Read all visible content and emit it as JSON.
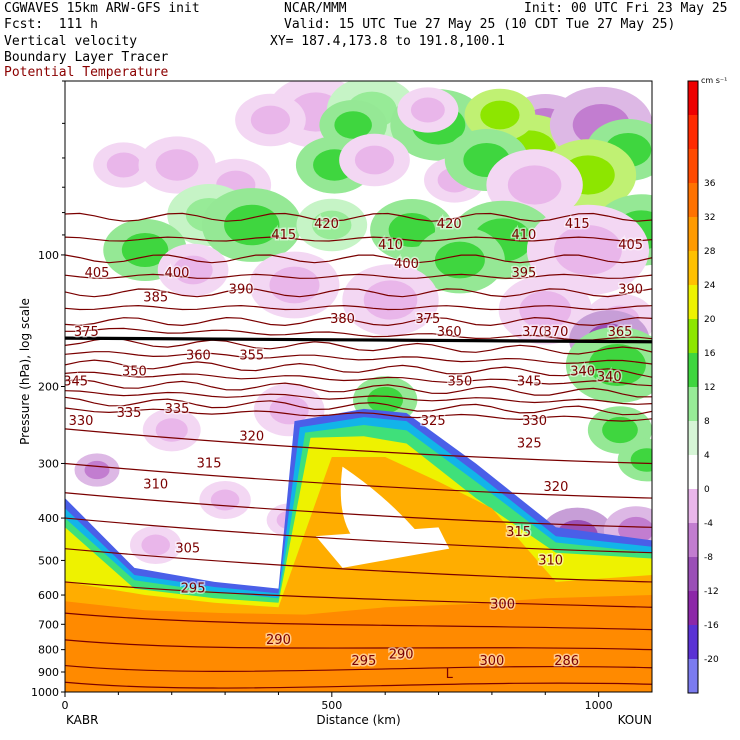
{
  "header": {
    "model": "CGWAVES 15km ARW-GFS init",
    "org": "NCAR/MMM",
    "init": "Init: 00 UTC Fri 23 May 25",
    "fcst": "Fcst:  111 h",
    "valid": "Valid: 15 UTC Tue 27 May 25 (10 CDT Tue 27 May 25)",
    "field1": "Vertical velocity",
    "xy": "XY= 187.4,173.8 to 191.8,100.1",
    "field2": "Boundary Layer Tracer",
    "field3": "Potential Temperature"
  },
  "colorbar": {
    "unit": "cm s⁻¹",
    "colors": [
      "#7b7bef",
      "#5a32d4",
      "#8c28a8",
      "#9a4fb6",
      "#c27dd0",
      "#e9b6ea",
      "#ffffff",
      "#d6f5d6",
      "#97eb97",
      "#3fd63f",
      "#8de600",
      "#eef200",
      "#ffc000",
      "#ff9a00",
      "#ff7200",
      "#ff4a00",
      "#ff2a00",
      "#ee0000"
    ],
    "labels": [
      "-20",
      "-16",
      "-12",
      "-8",
      "-4",
      "0",
      "4",
      "8",
      "12",
      "16",
      "20",
      "24",
      "28",
      "32",
      "36"
    ]
  },
  "chart_data": {
    "type": "cross-section",
    "title": "Vertical velocity / Boundary Layer Tracer / Potential Temperature",
    "xlabel": "Distance (km)",
    "ylabel": "Pressure (hPa), log scale",
    "x_ticks": [
      "0",
      "500",
      "1000"
    ],
    "xlim": [
      0,
      1100
    ],
    "y_ticks": [
      "100",
      "200",
      "300",
      "400",
      "500",
      "600",
      "700",
      "800",
      "900",
      "1000"
    ],
    "ylim": [
      1000,
      40
    ],
    "y_scale": "log",
    "endpoints": {
      "left": "KABR",
      "right": "KOUN"
    },
    "theta_label_values": [
      "415",
      "420",
      "410",
      "420",
      "410",
      "415",
      "405",
      "405",
      "400",
      "400",
      "395",
      "390",
      "390",
      "385",
      "380",
      "375",
      "375",
      "360",
      "370",
      "370",
      "365",
      "360",
      "355",
      "350",
      "345",
      "350",
      "345",
      "340",
      "340",
      "335",
      "335",
      "330",
      "330",
      "325",
      "320",
      "325",
      "315",
      "320",
      "310",
      "315",
      "305",
      "310",
      "295",
      "300",
      "290",
      "290",
      "295",
      "300",
      "286"
    ],
    "boundary_layer_tracer_top_hPa": [
      {
        "x": 0,
        "p": 410
      },
      {
        "x": 200,
        "p": 520
      },
      {
        "x": 420,
        "p": 560
      },
      {
        "x": 430,
        "p": 235
      },
      {
        "x": 560,
        "p": 225
      },
      {
        "x": 760,
        "p": 300
      },
      {
        "x": 950,
        "p": 430
      },
      {
        "x": 1100,
        "p": 450
      }
    ],
    "annotations": [
      "L"
    ]
  }
}
